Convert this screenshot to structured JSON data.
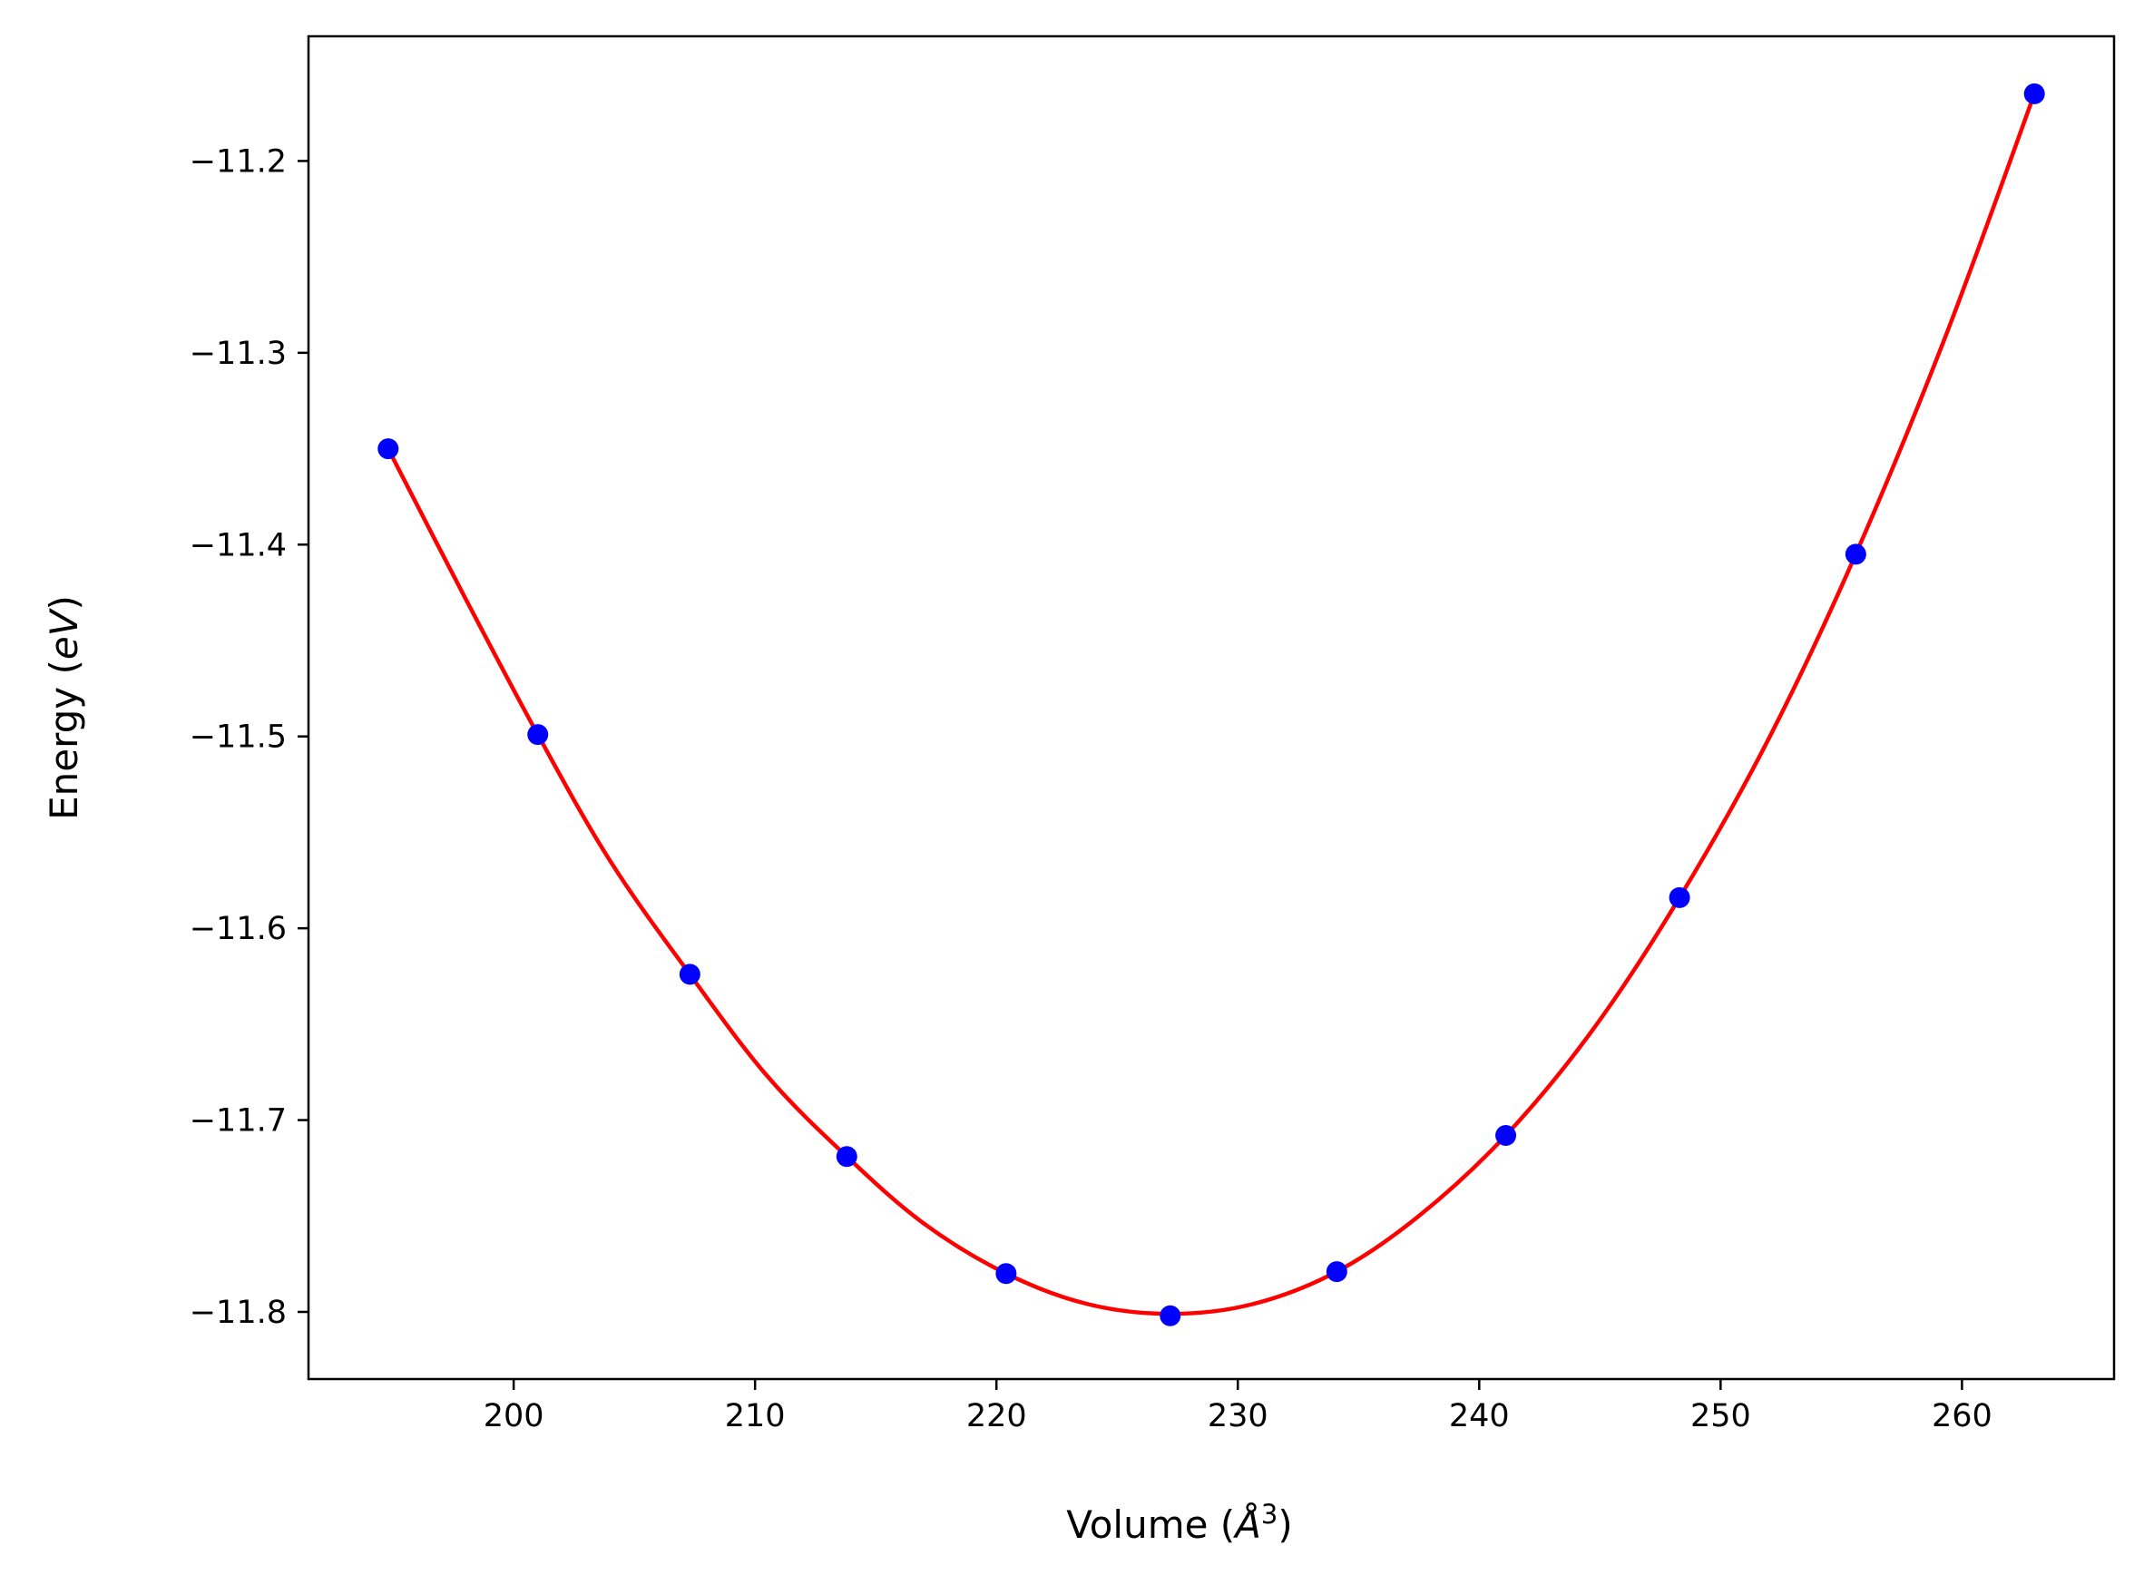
{
  "chart_data": {
    "type": "scatter",
    "title": "",
    "xlabel": "Volume (Å³)",
    "ylabel": "Energy (eV)",
    "xlabel_parts": {
      "prefix": "Volume (",
      "symbol": "Å",
      "sup": "3",
      "suffix": ")"
    },
    "ylabel_parts": {
      "prefix": "Energy (",
      "symbol": "eV",
      "suffix": ")"
    },
    "xlim": [
      191.5,
      266.3
    ],
    "ylim": [
      -11.835,
      -11.135
    ],
    "xticks": [
      200,
      210,
      220,
      230,
      240,
      250,
      260
    ],
    "xtick_labels": [
      "200",
      "210",
      "220",
      "230",
      "240",
      "250",
      "260"
    ],
    "yticks": [
      -11.2,
      -11.3,
      -11.4,
      -11.5,
      -11.6,
      -11.7,
      -11.8
    ],
    "ytick_labels": [
      "−11.2",
      "−11.3",
      "−11.4",
      "−11.5",
      "−11.6",
      "−11.7",
      "−11.8"
    ],
    "grid": false,
    "series": [
      {
        "kind": "points",
        "color": "#0000ff",
        "x": [
          194.8,
          201.0,
          207.3,
          213.8,
          220.4,
          227.2,
          234.1,
          241.1,
          248.3,
          255.6,
          263.0
        ],
        "y": [
          -11.35,
          -11.499,
          -11.624,
          -11.719,
          -11.78,
          -11.802,
          -11.779,
          -11.708,
          -11.584,
          -11.405,
          -11.165
        ]
      },
      {
        "kind": "fit-curve",
        "color": "#ff0000",
        "x": [
          194.8,
          198.0,
          201.0,
          204.0,
          207.3,
          210.5,
          213.8,
          217.0,
          220.4,
          223.8,
          227.2,
          230.6,
          234.1,
          237.5,
          241.1,
          244.7,
          248.3,
          252.0,
          255.6,
          259.3,
          263.0
        ],
        "y": [
          -11.35,
          -11.428,
          -11.499,
          -11.565,
          -11.624,
          -11.677,
          -11.719,
          -11.754,
          -11.78,
          -11.796,
          -11.801,
          -11.796,
          -11.779,
          -11.75,
          -11.708,
          -11.653,
          -11.584,
          -11.501,
          -11.405,
          -11.292,
          -11.165
        ]
      }
    ]
  }
}
